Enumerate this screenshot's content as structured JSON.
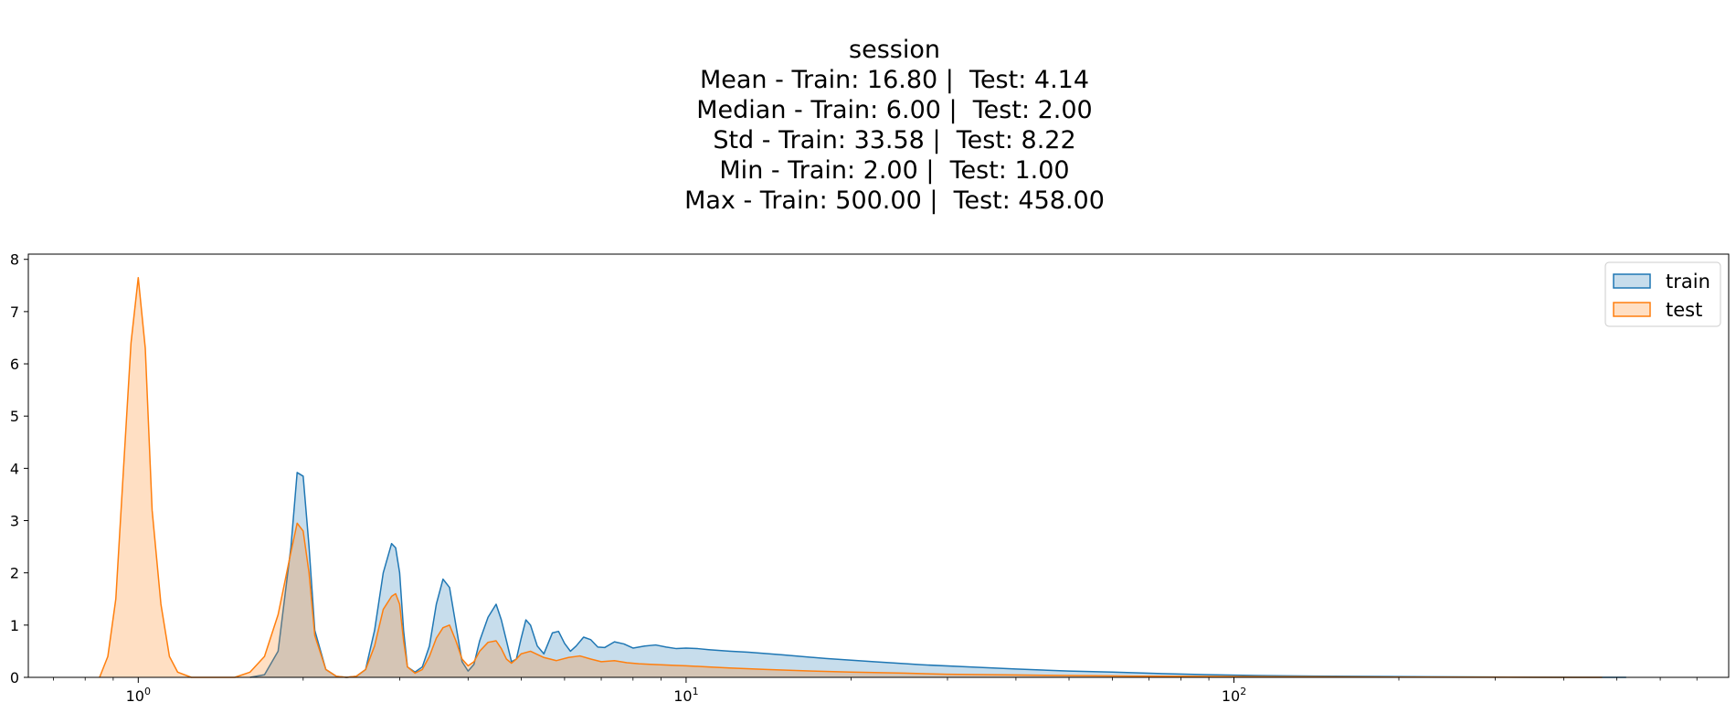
{
  "chart_data": {
    "type": "area",
    "title_lines": [
      "session",
      "Mean - Train: 16.80 |  Test: 4.14",
      "Median - Train: 6.00 |  Test: 2.00",
      "Std - Train: 33.58 |  Test: 8.22",
      "Min - Train: 2.00 |  Test: 1.00",
      "Max - Train: 500.00 |  Test: 458.00"
    ],
    "xlabel": "",
    "ylabel": "",
    "x_scale": "log",
    "xlim": [
      0.63,
      800
    ],
    "ylim": [
      0,
      8.1
    ],
    "x_ticks": [
      {
        "value": 1,
        "label": "10",
        "exp": "0"
      },
      {
        "value": 10,
        "label": "10",
        "exp": "1"
      },
      {
        "value": 100,
        "label": "10",
        "exp": "2"
      }
    ],
    "y_ticks": [
      0,
      1,
      2,
      3,
      4,
      5,
      6,
      7,
      8
    ],
    "legend_position": "top-right",
    "series": [
      {
        "name": "train",
        "color": "#1f77b4",
        "fill": "#a6c8e3",
        "x": [
          1.6,
          1.7,
          1.8,
          1.9,
          1.95,
          2.0,
          2.05,
          2.1,
          2.2,
          2.3,
          2.4,
          2.5,
          2.6,
          2.7,
          2.8,
          2.9,
          2.95,
          3.0,
          3.05,
          3.1,
          3.2,
          3.3,
          3.4,
          3.5,
          3.6,
          3.7,
          3.8,
          3.9,
          4.0,
          4.1,
          4.2,
          4.35,
          4.5,
          4.6,
          4.7,
          4.8,
          4.9,
          5.0,
          5.1,
          5.2,
          5.35,
          5.5,
          5.7,
          5.85,
          6.0,
          6.15,
          6.3,
          6.5,
          6.7,
          6.9,
          7.1,
          7.4,
          7.7,
          8.0,
          8.4,
          8.8,
          9.2,
          9.6,
          10,
          10.5,
          11,
          12,
          13,
          15,
          18,
          22,
          27,
          33,
          40,
          50,
          60,
          75,
          90,
          110,
          140,
          180,
          230,
          290,
          360,
          450,
          520
        ],
        "y": [
          0,
          0.05,
          0.5,
          2.5,
          3.92,
          3.85,
          2.5,
          0.9,
          0.15,
          0.02,
          0.0,
          0.02,
          0.15,
          0.9,
          2.0,
          2.56,
          2.48,
          2.0,
          0.9,
          0.2,
          0.1,
          0.2,
          0.6,
          1.4,
          1.88,
          1.72,
          1.0,
          0.3,
          0.12,
          0.25,
          0.7,
          1.15,
          1.4,
          1.1,
          0.7,
          0.3,
          0.35,
          0.75,
          1.1,
          1.0,
          0.6,
          0.45,
          0.85,
          0.88,
          0.65,
          0.5,
          0.6,
          0.77,
          0.72,
          0.58,
          0.57,
          0.68,
          0.64,
          0.56,
          0.6,
          0.62,
          0.58,
          0.55,
          0.56,
          0.55,
          0.53,
          0.5,
          0.48,
          0.43,
          0.36,
          0.3,
          0.24,
          0.2,
          0.16,
          0.12,
          0.1,
          0.07,
          0.05,
          0.035,
          0.025,
          0.018,
          0.01,
          0.006,
          0.003,
          0.001,
          0
        ]
      },
      {
        "name": "test",
        "color": "#ff7f0e",
        "fill": "#ffcc99",
        "x": [
          0.85,
          0.88,
          0.91,
          0.94,
          0.97,
          1.0,
          1.03,
          1.06,
          1.1,
          1.14,
          1.18,
          1.25,
          1.35,
          1.5,
          1.6,
          1.7,
          1.8,
          1.9,
          1.95,
          2.0,
          2.05,
          2.1,
          2.2,
          2.3,
          2.4,
          2.5,
          2.6,
          2.7,
          2.8,
          2.9,
          2.95,
          3.0,
          3.05,
          3.1,
          3.2,
          3.3,
          3.4,
          3.5,
          3.6,
          3.7,
          3.8,
          3.9,
          4.0,
          4.1,
          4.2,
          4.35,
          4.5,
          4.6,
          4.7,
          4.8,
          4.9,
          5.0,
          5.2,
          5.5,
          5.8,
          6.1,
          6.4,
          6.7,
          7.0,
          7.4,
          7.8,
          8.2,
          8.6,
          9.0,
          9.5,
          10,
          11,
          12,
          14,
          17,
          20,
          25,
          30,
          40,
          50,
          65,
          80,
          100,
          130,
          170,
          220,
          300,
          400,
          470
        ],
        "y": [
          0,
          0.4,
          1.5,
          4.0,
          6.4,
          7.65,
          6.3,
          3.2,
          1.4,
          0.4,
          0.1,
          0.0,
          0.0,
          0.0,
          0.1,
          0.4,
          1.2,
          2.4,
          2.95,
          2.8,
          2.0,
          0.8,
          0.15,
          0.02,
          0.0,
          0.02,
          0.15,
          0.6,
          1.3,
          1.55,
          1.6,
          1.4,
          0.7,
          0.2,
          0.08,
          0.15,
          0.4,
          0.75,
          0.95,
          1.0,
          0.7,
          0.35,
          0.22,
          0.3,
          0.5,
          0.67,
          0.7,
          0.55,
          0.35,
          0.27,
          0.35,
          0.45,
          0.5,
          0.38,
          0.32,
          0.38,
          0.41,
          0.35,
          0.3,
          0.32,
          0.28,
          0.26,
          0.25,
          0.24,
          0.23,
          0.22,
          0.2,
          0.18,
          0.15,
          0.12,
          0.1,
          0.08,
          0.06,
          0.045,
          0.035,
          0.025,
          0.02,
          0.015,
          0.01,
          0.007,
          0.004,
          0.002,
          0.001,
          0
        ]
      }
    ]
  }
}
